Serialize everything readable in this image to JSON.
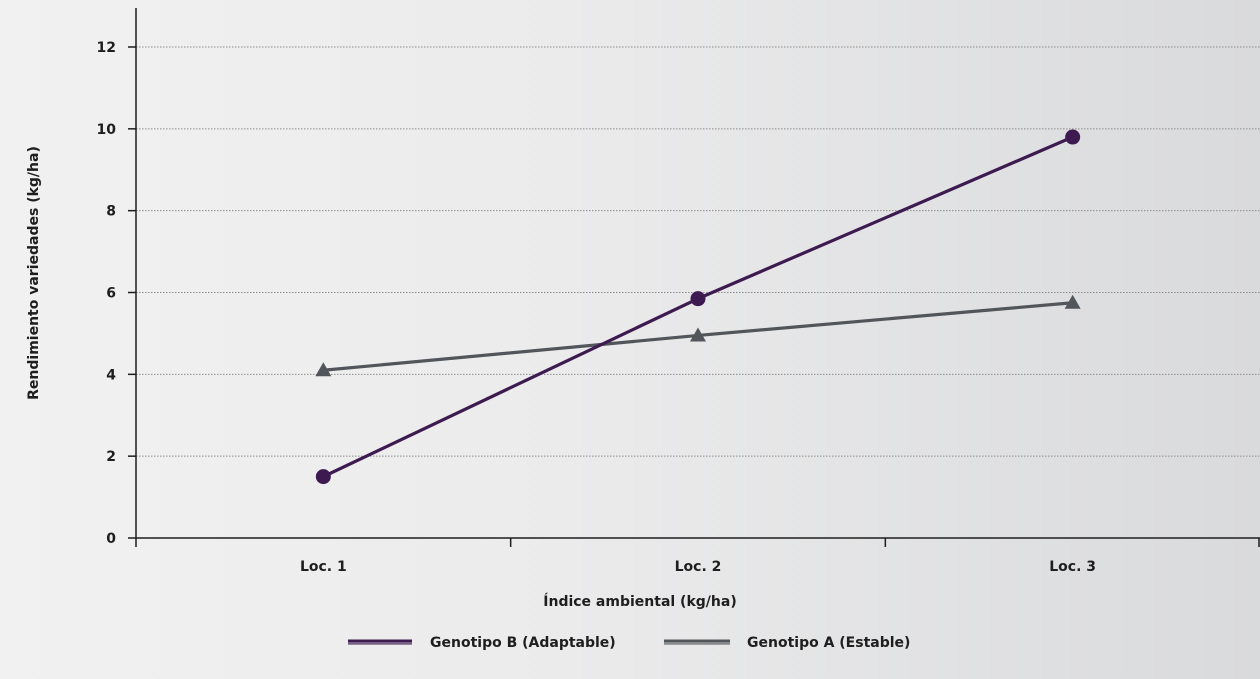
{
  "chart_data": {
    "type": "line",
    "categories": [
      "Loc. 1",
      "Loc. 2",
      "Loc. 3"
    ],
    "series": [
      {
        "name": "Genotipo B (Adaptable)",
        "values": [
          1.5,
          5.85,
          9.8
        ],
        "color": "#3d1a4f",
        "marker": "circle"
      },
      {
        "name": "Genotipo A (Estable)",
        "values": [
          4.1,
          4.95,
          5.75
        ],
        "color": "#52565a",
        "marker": "triangle"
      }
    ],
    "title": "",
    "xlabel": "Índice ambiental (kg/ha)",
    "ylabel": "Rendimiento variedades (kg/ha)",
    "ylim": [
      0,
      12
    ],
    "yticks": [
      0,
      2,
      4,
      6,
      8,
      10,
      12
    ],
    "grid": "horizontal-dotted",
    "legend_position": "bottom"
  }
}
